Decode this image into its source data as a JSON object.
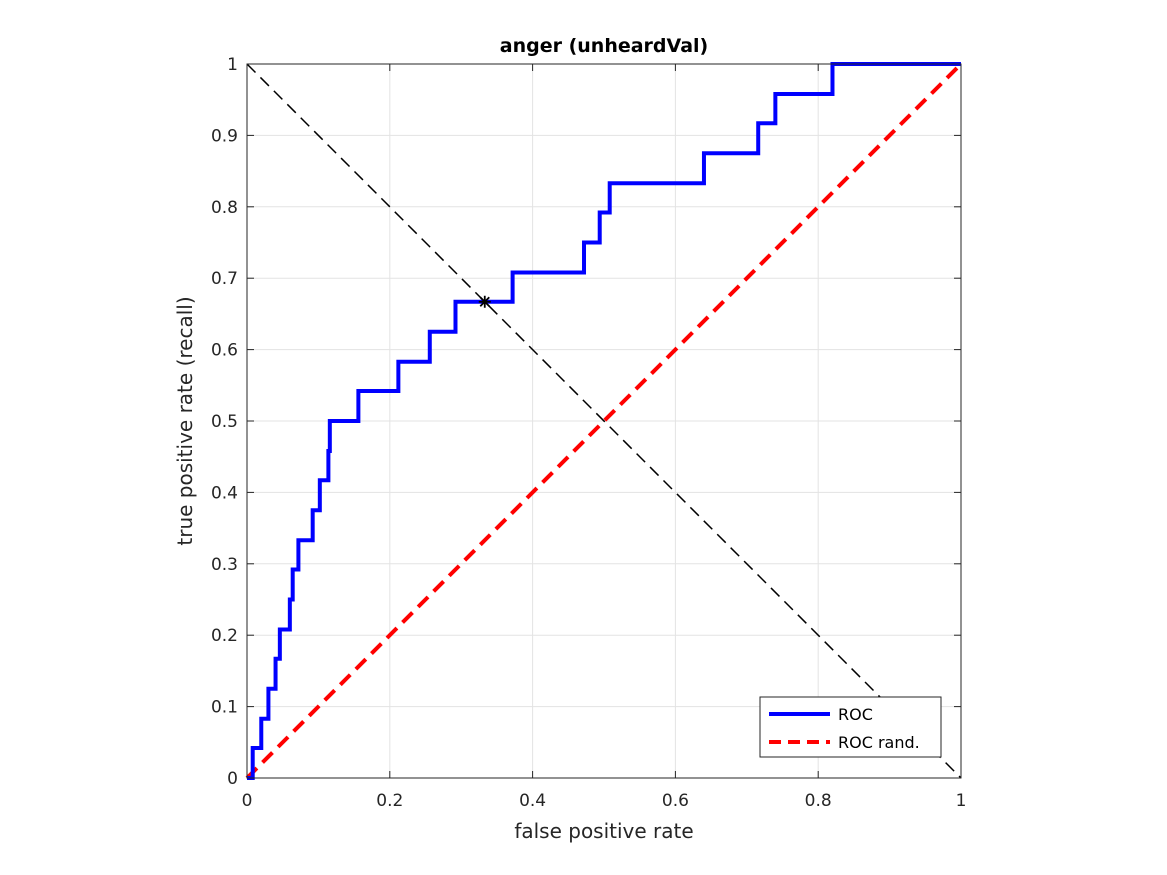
{
  "chart_data": {
    "type": "line",
    "title": "anger (unheardVal)",
    "xlabel": "false positive rate",
    "ylabel": "true positive rate (recall)",
    "xlim": [
      0,
      1
    ],
    "ylim": [
      0,
      1
    ],
    "grid": true,
    "xticks": [
      0,
      0.2,
      0.4,
      0.6,
      0.8,
      1
    ],
    "xtick_labels": [
      "0",
      "0.2",
      "0.4",
      "0.6",
      "0.8",
      "1"
    ],
    "yticks": [
      0,
      0.1,
      0.2,
      0.3,
      0.4,
      0.5,
      0.6,
      0.7,
      0.8,
      0.9,
      1
    ],
    "ytick_labels": [
      "0",
      "0.1",
      "0.2",
      "0.3",
      "0.4",
      "0.5",
      "0.6",
      "0.7",
      "0.8",
      "0.9",
      "1"
    ],
    "legend_position": "bottom-right",
    "series": [
      {
        "name": "ROC",
        "color": "#0000ff",
        "style": "solid",
        "step_points": [
          [
            0,
            0
          ],
          [
            0.008,
            0.042
          ],
          [
            0.02,
            0.083
          ],
          [
            0.03,
            0.125
          ],
          [
            0.04,
            0.167
          ],
          [
            0.046,
            0.208
          ],
          [
            0.06,
            0.25
          ],
          [
            0.064,
            0.292
          ],
          [
            0.072,
            0.333
          ],
          [
            0.092,
            0.375
          ],
          [
            0.102,
            0.417
          ],
          [
            0.114,
            0.458
          ],
          [
            0.116,
            0.5
          ],
          [
            0.156,
            0.542
          ],
          [
            0.212,
            0.583
          ],
          [
            0.256,
            0.625
          ],
          [
            0.292,
            0.667
          ],
          [
            0.372,
            0.708
          ],
          [
            0.472,
            0.75
          ],
          [
            0.494,
            0.792
          ],
          [
            0.508,
            0.833
          ],
          [
            0.64,
            0.875
          ],
          [
            0.716,
            0.917
          ],
          [
            0.74,
            0.958
          ],
          [
            0.82,
            1.0
          ],
          [
            1.0,
            1.0
          ]
        ]
      },
      {
        "name": "ROC rand.",
        "color": "#ff0000",
        "style": "dashed",
        "x": [
          0,
          1
        ],
        "y": [
          0,
          1
        ]
      }
    ],
    "reference_line": {
      "color": "#000000",
      "style": "dashed",
      "x": [
        0,
        1
      ],
      "y": [
        1,
        0
      ]
    },
    "marker": {
      "x": 0.333,
      "y": 0.667,
      "symbol": "*",
      "color": "#000000"
    }
  }
}
